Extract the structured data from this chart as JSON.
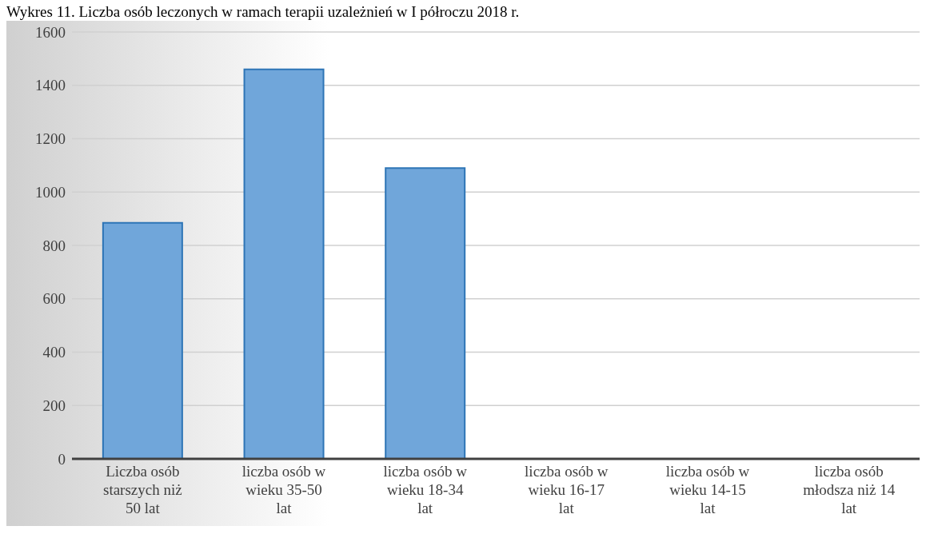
{
  "chart_data": {
    "type": "bar",
    "title": "Wykres 11. Liczba osób leczonych w ramach terapii uzależnień w I półroczu 2018 r.",
    "categories": [
      "Liczba osób starszych niż 50 lat",
      "liczba osób w wieku 35-50 lat",
      "liczba osób w wieku 18-34 lat",
      "liczba osób w wieku 16-17 lat",
      "liczba osób w wieku 14-15 lat",
      "liczba osób młodsza niż 14 lat"
    ],
    "values": [
      885,
      1460,
      1090,
      0,
      0,
      0
    ],
    "color": "#70a6da",
    "ylim": [
      0,
      1600
    ],
    "yticks": [
      0,
      200,
      400,
      600,
      800,
      1000,
      1200,
      1400,
      1600
    ],
    "grid": "y"
  }
}
